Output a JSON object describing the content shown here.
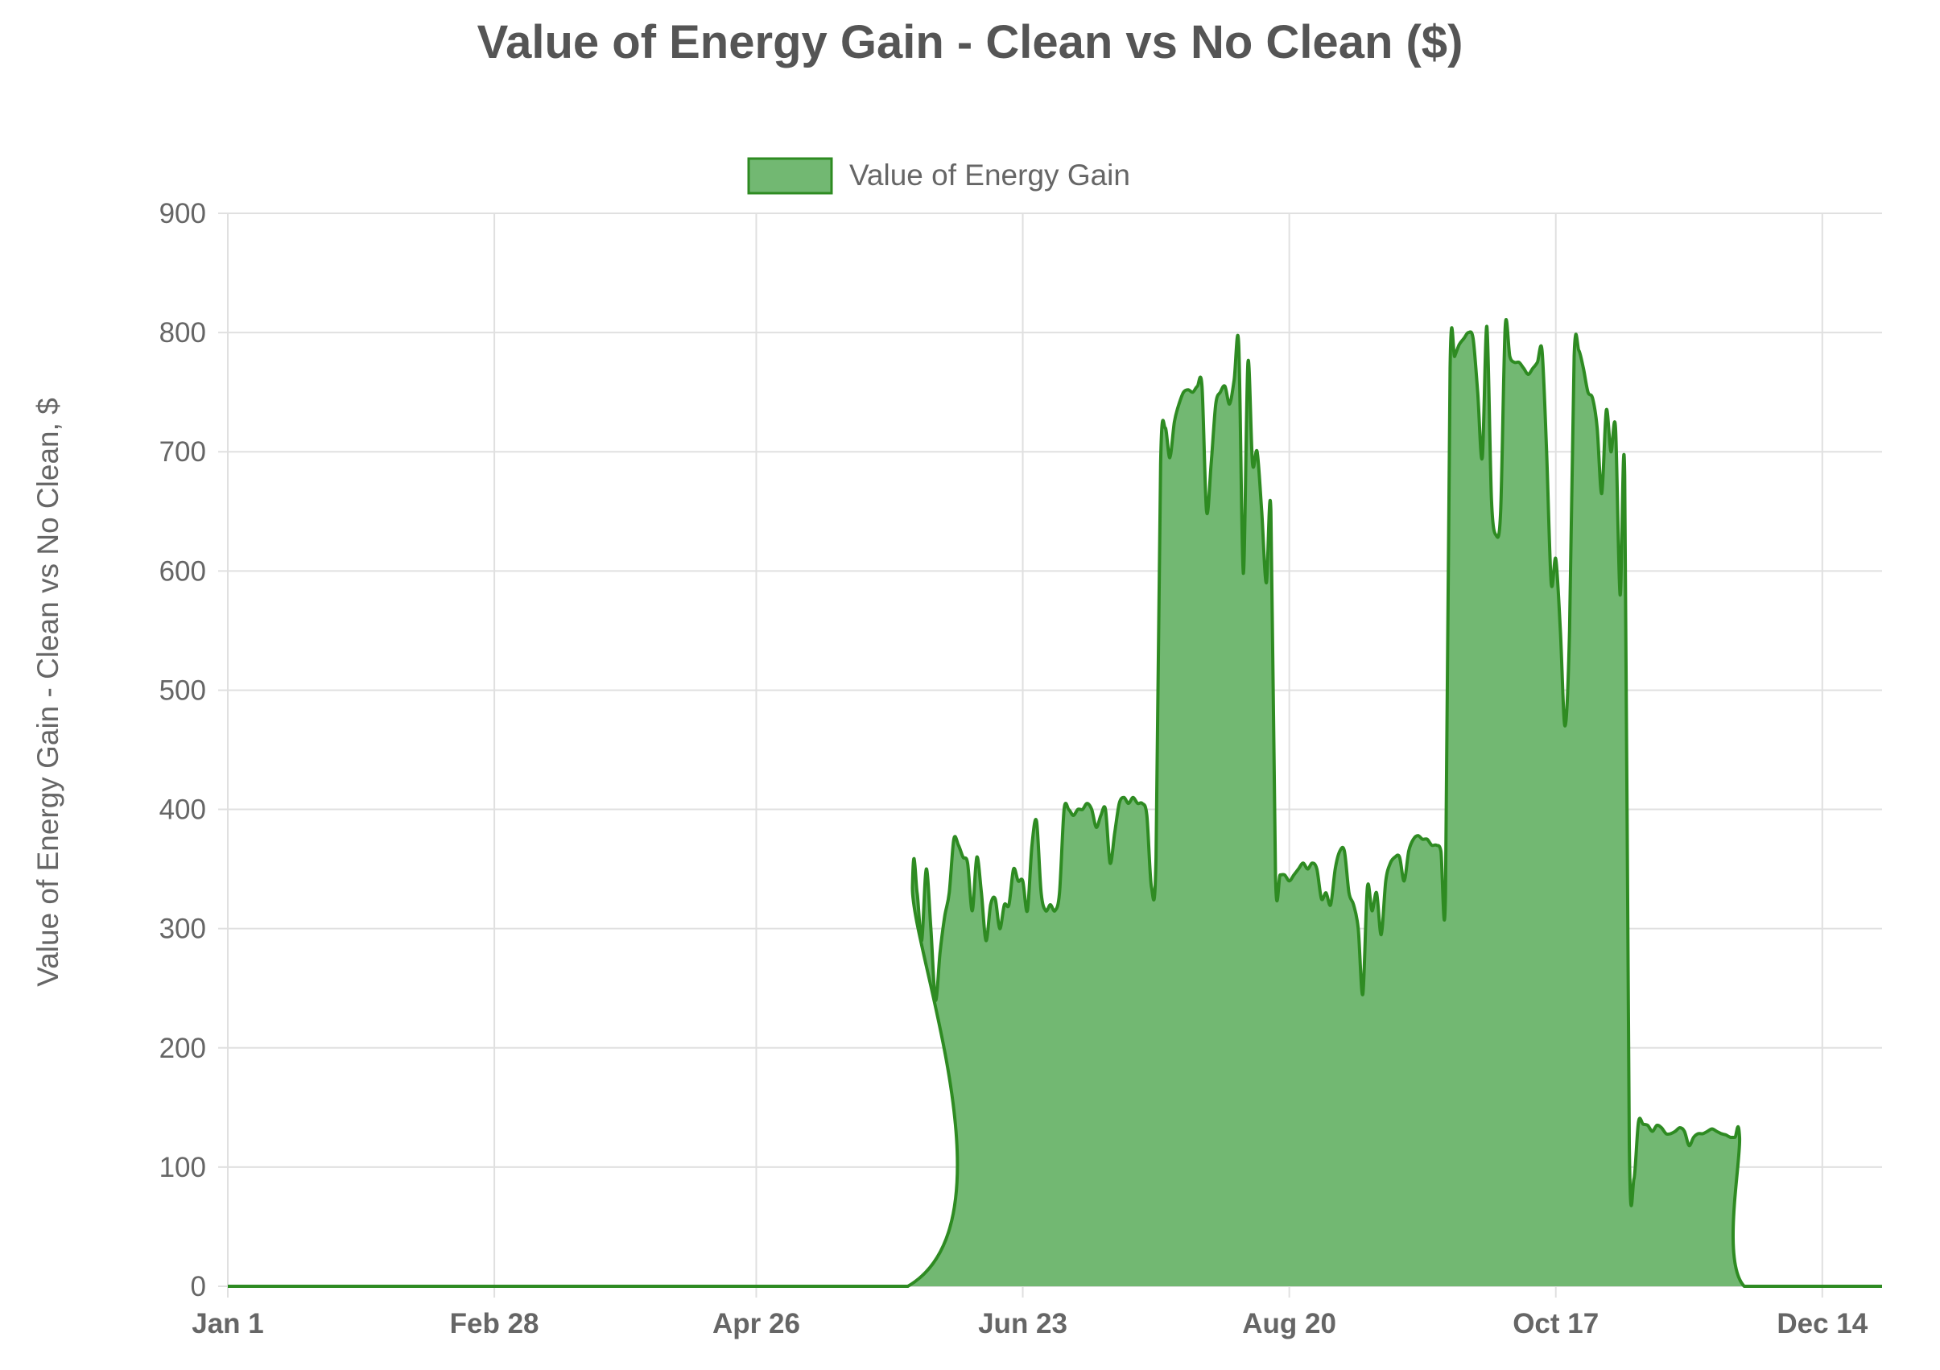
{
  "chart_data": {
    "type": "area",
    "title": "Value of Energy Gain - Clean vs No Clean ($)",
    "xlabel": "",
    "ylabel": "Value of Energy Gain - Clean vs No Clean, $",
    "ylim": [
      0,
      900
    ],
    "xlim_day": [
      0,
      360
    ],
    "yticks": [
      "0",
      "100",
      "200",
      "300",
      "400",
      "500",
      "600",
      "700",
      "800",
      "900"
    ],
    "xticks": [
      {
        "label": "Jan 1",
        "day": 0
      },
      {
        "label": "Feb 28",
        "day": 58
      },
      {
        "label": "Apr 26",
        "day": 115
      },
      {
        "label": "Jun 23",
        "day": 173
      },
      {
        "label": "Aug 20",
        "day": 231
      },
      {
        "label": "Oct 17",
        "day": 289
      },
      {
        "label": "Dec 14",
        "day": 347
      }
    ],
    "grid": true,
    "legend_position": "top",
    "colors": {
      "line": "#2e8b22",
      "fill": "#72b872",
      "grid": "#e0e0e0",
      "text": "#666666",
      "title": "#555555"
    },
    "series": [
      {
        "name": "Value of Energy Gain",
        "points": [
          [
            0,
            0
          ],
          [
            148,
            0
          ],
          [
            149,
            335
          ],
          [
            150,
            330
          ],
          [
            151,
            290
          ],
          [
            152,
            350
          ],
          [
            153,
            300
          ],
          [
            154,
            240
          ],
          [
            155,
            280
          ],
          [
            156,
            310
          ],
          [
            157,
            330
          ],
          [
            158,
            375
          ],
          [
            159,
            370
          ],
          [
            160,
            360
          ],
          [
            161,
            355
          ],
          [
            162,
            315
          ],
          [
            163,
            360
          ],
          [
            164,
            330
          ],
          [
            165,
            290
          ],
          [
            166,
            320
          ],
          [
            167,
            325
          ],
          [
            168,
            300
          ],
          [
            169,
            320
          ],
          [
            170,
            320
          ],
          [
            171,
            350
          ],
          [
            172,
            340
          ],
          [
            173,
            340
          ],
          [
            174,
            315
          ],
          [
            175,
            370
          ],
          [
            176,
            390
          ],
          [
            177,
            330
          ],
          [
            178,
            315
          ],
          [
            179,
            320
          ],
          [
            180,
            315
          ],
          [
            181,
            330
          ],
          [
            182,
            400
          ],
          [
            183,
            400
          ],
          [
            184,
            395
          ],
          [
            185,
            400
          ],
          [
            186,
            400
          ],
          [
            187,
            405
          ],
          [
            188,
            400
          ],
          [
            189,
            385
          ],
          [
            190,
            395
          ],
          [
            191,
            400
          ],
          [
            192,
            355
          ],
          [
            193,
            380
          ],
          [
            194,
            405
          ],
          [
            195,
            410
          ],
          [
            196,
            405
          ],
          [
            197,
            410
          ],
          [
            198,
            405
          ],
          [
            199,
            405
          ],
          [
            200,
            395
          ],
          [
            201,
            335
          ],
          [
            202,
            360
          ],
          [
            203,
            690
          ],
          [
            204,
            720
          ],
          [
            205,
            695
          ],
          [
            206,
            725
          ],
          [
            207,
            740
          ],
          [
            208,
            750
          ],
          [
            209,
            752
          ],
          [
            210,
            750
          ],
          [
            211,
            755
          ],
          [
            212,
            755
          ],
          [
            213,
            650
          ],
          [
            214,
            690
          ],
          [
            215,
            740
          ],
          [
            216,
            750
          ],
          [
            217,
            755
          ],
          [
            218,
            740
          ],
          [
            219,
            760
          ],
          [
            220,
            790
          ],
          [
            221,
            598
          ],
          [
            222,
            775
          ],
          [
            223,
            690
          ],
          [
            224,
            700
          ],
          [
            225,
            650
          ],
          [
            226,
            590
          ],
          [
            227,
            650
          ],
          [
            228,
            345
          ],
          [
            229,
            345
          ],
          [
            230,
            345
          ],
          [
            231,
            340
          ],
          [
            232,
            345
          ],
          [
            233,
            350
          ],
          [
            234,
            355
          ],
          [
            235,
            350
          ],
          [
            236,
            355
          ],
          [
            237,
            350
          ],
          [
            238,
            325
          ],
          [
            239,
            330
          ],
          [
            240,
            320
          ],
          [
            241,
            350
          ],
          [
            242,
            365
          ],
          [
            243,
            365
          ],
          [
            244,
            330
          ],
          [
            245,
            320
          ],
          [
            246,
            300
          ],
          [
            247,
            245
          ],
          [
            248,
            335
          ],
          [
            249,
            315
          ],
          [
            250,
            330
          ],
          [
            251,
            295
          ],
          [
            252,
            340
          ],
          [
            253,
            355
          ],
          [
            254,
            360
          ],
          [
            255,
            360
          ],
          [
            256,
            340
          ],
          [
            257,
            365
          ],
          [
            258,
            375
          ],
          [
            259,
            378
          ],
          [
            260,
            375
          ],
          [
            261,
            375
          ],
          [
            262,
            370
          ],
          [
            263,
            370
          ],
          [
            264,
            365
          ],
          [
            265,
            330
          ],
          [
            266,
            770
          ],
          [
            267,
            780
          ],
          [
            268,
            790
          ],
          [
            269,
            795
          ],
          [
            270,
            800
          ],
          [
            271,
            795
          ],
          [
            272,
            750
          ],
          [
            273,
            695
          ],
          [
            274,
            805
          ],
          [
            275,
            660
          ],
          [
            276,
            630
          ],
          [
            277,
            650
          ],
          [
            278,
            805
          ],
          [
            279,
            780
          ],
          [
            280,
            775
          ],
          [
            281,
            775
          ],
          [
            282,
            770
          ],
          [
            283,
            765
          ],
          [
            284,
            770
          ],
          [
            285,
            775
          ],
          [
            286,
            785
          ],
          [
            287,
            700
          ],
          [
            288,
            590
          ],
          [
            289,
            610
          ],
          [
            290,
            550
          ],
          [
            291,
            470
          ],
          [
            292,
            550
          ],
          [
            293,
            780
          ],
          [
            294,
            785
          ],
          [
            295,
            770
          ],
          [
            296,
            750
          ],
          [
            297,
            745
          ],
          [
            298,
            720
          ],
          [
            299,
            665
          ],
          [
            300,
            735
          ],
          [
            301,
            700
          ],
          [
            302,
            720
          ],
          [
            303,
            580
          ],
          [
            304,
            680
          ],
          [
            305,
            120
          ],
          [
            306,
            90
          ],
          [
            307,
            138
          ],
          [
            308,
            136
          ],
          [
            309,
            135
          ],
          [
            310,
            130
          ],
          [
            311,
            135
          ],
          [
            312,
            133
          ],
          [
            313,
            128
          ],
          [
            314,
            128
          ],
          [
            315,
            130
          ],
          [
            316,
            133
          ],
          [
            317,
            130
          ],
          [
            318,
            118
          ],
          [
            319,
            125
          ],
          [
            320,
            128
          ],
          [
            321,
            128
          ],
          [
            322,
            130
          ],
          [
            323,
            132
          ],
          [
            324,
            130
          ],
          [
            325,
            128
          ],
          [
            326,
            127
          ],
          [
            327,
            125
          ],
          [
            328,
            125
          ],
          [
            329,
            125
          ],
          [
            330,
            0
          ],
          [
            360,
            0
          ]
        ]
      }
    ]
  }
}
